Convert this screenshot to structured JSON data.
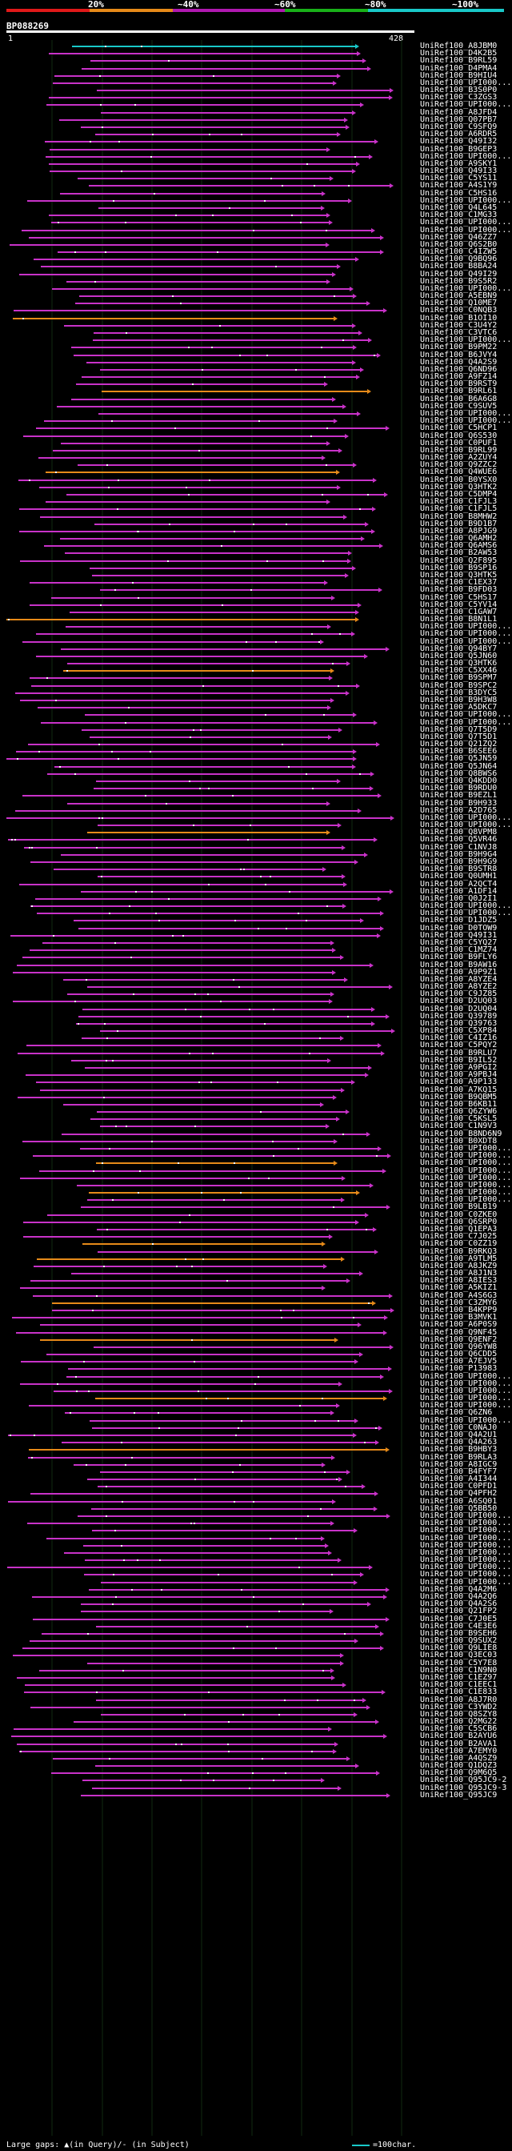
{
  "query": {
    "id": "BP088269",
    "start": "1",
    "end": "428"
  },
  "legend": {
    "ticks": [
      "20%",
      "~40%",
      "~60%",
      "~80%",
      "~100%"
    ],
    "colors": [
      "#e01919",
      "#e68a19",
      "#b019b0",
      "#19b019",
      "#19c8c8"
    ]
  },
  "hit_color": "#c832c8",
  "hit_alt_color": "#e68a19",
  "hit_top_color": "#19c8c8",
  "hits": [
    "UniRef100_A8JBM0",
    "UniRef100_D4K2B5",
    "UniRef100_B9RL59",
    "UniRef100_D4PMA4",
    "UniRef100_B9HIU4",
    "UniRef100_UPI000...",
    "UniRef100_B3S0P0",
    "UniRef100_C3ZGS3",
    "UniRef100_UPI000...",
    "UniRef100_A8JFD4",
    "UniRef100_Q07PB7",
    "UniRef100_C9SFQ9",
    "UniRef100_A6RDR5",
    "UniRef100_Q49I32",
    "UniRef100_B9GEP3",
    "UniRef100_UPI000...",
    "UniRef100_A9SKY1",
    "UniRef100_Q49I33",
    "UniRef100_C5YS11",
    "UniRef100_A4S1Y9",
    "UniRef100_C5HS16",
    "UniRef100_UPI000...",
    "UniRef100_Q4L645",
    "UniRef100_C1MG33",
    "UniRef100_UPI000...",
    "UniRef100_UPI000...",
    "UniRef100_Q46ZZ7",
    "UniRef100_Q6S2B0",
    "UniRef100_C4IZW5",
    "UniRef100_Q9BQ96",
    "UniRef100_B8BA24",
    "UniRef100_Q49I29",
    "UniRef100_B9S5R2",
    "UniRef100_UPI000...",
    "UniRef100_A5EBN9",
    "UniRef100_Q10ME7",
    "UniRef100_C0NQB3",
    "UniRef100_B1OI10",
    "UniRef100_C3U4Y2",
    "UniRef100_C3VTC6",
    "UniRef100_UPI000...",
    "UniRef100_B9PM22",
    "UniRef100_B6JVY4",
    "UniRef100_Q4A2S9",
    "UniRef100_Q6ND96",
    "UniRef100_A9FZ14",
    "UniRef100_B9RST9",
    "UniRef100_B9RL61",
    "UniRef100_B6A6G8",
    "UniRef100_C9SUV5",
    "UniRef100_UPI000...",
    "UniRef100_UPI000...",
    "UniRef100_C5HCP1",
    "UniRef100_Q6S530",
    "UniRef100_C0PUF1",
    "UniRef100_B9RL99",
    "UniRef100_A2ZUY4",
    "UniRef100_Q9ZZC2",
    "UniRef100_Q4WUE6",
    "UniRef100_B0YSX0",
    "UniRef100_Q3HTK2",
    "UniRef100_C5DMP4",
    "UniRef100_C1FJL3",
    "UniRef100_C1FJL5",
    "UniRef100_B8MHW2",
    "UniRef100_B9D1B7",
    "UniRef100_A8PJG9",
    "UniRef100_Q6AMH2",
    "UniRef100_Q6AMS6",
    "UniRef100_B2AW53",
    "UniRef100_Q2F895",
    "UniRef100_B9SP16",
    "UniRef100_Q3HTK5",
    "UniRef100_C1EX37",
    "UniRef100_B9FD03",
    "UniRef100_C5HS17",
    "UniRef100_C5YV14",
    "UniRef100_C1GAW7",
    "UniRef100_B8N1L1",
    "UniRef100_UPI000...",
    "UniRef100_UPI000...",
    "UniRef100_UPI000...",
    "UniRef100_Q94BY7",
    "UniRef100_Q5JN60",
    "UniRef100_Q3HTK6",
    "UniRef100_C5XX46",
    "UniRef100_B9SPM7",
    "UniRef100_B9SPC2",
    "UniRef100_B3DYC5",
    "UniRef100_B9H3W8",
    "UniRef100_A5DKC7",
    "UniRef100_UPI000...",
    "UniRef100_UPI000...",
    "UniRef100_Q7T5D9",
    "UniRef100_Q7T5D1",
    "UniRef100_Q21ZQ2",
    "UniRef100_B6SEE6",
    "UniRef100_Q5JN59",
    "UniRef100_Q5JN64",
    "UniRef100_Q8BWS6",
    "UniRef100_Q4KDD0",
    "UniRef100_B9RDU0",
    "UniRef100_B9EZL1",
    "UniRef100_B9H933",
    "UniRef100_A2D765",
    "UniRef100_UPI000...",
    "UniRef100_UPI000...",
    "UniRef100_Q8VPM8",
    "UniRef100_Q5VR46",
    "UniRef100_C1NVJ8",
    "UniRef100_B9H9G4",
    "UniRef100_B9H9G9",
    "UniRef100_B9STR8",
    "UniRef100_Q0UMH1",
    "UniRef100_A2QCT4",
    "UniRef100_A1DF14",
    "UniRef100_Q0J2I1",
    "UniRef100_UPI000...",
    "UniRef100_UPI000...",
    "UniRef100_D1JDZ5",
    "UniRef100_D0TOW9",
    "UniRef100_Q49I31",
    "UniRef100_C5YQ27",
    "UniRef100_C1MZ74",
    "UniRef100_B9FLY6",
    "UniRef100_B9AW16",
    "UniRef100_A9P9Z1",
    "UniRef100_A8YZE4",
    "UniRef100_A8YZE2",
    "UniRef100_C9JZ85",
    "UniRef100_D2UQ03",
    "UniRef100_D2UQ04",
    "UniRef100_Q39789",
    "UniRef100_Q39763",
    "UniRef100_C5XP84",
    "UniRef100_C4IZ16",
    "UniRef100_C5PQY2",
    "UniRef100_B9RLU7",
    "UniRef100_B9IL52",
    "UniRef100_A9PGI2",
    "UniRef100_A9PBJ4",
    "UniRef100_A9P133",
    "UniRef100_A7KQ15",
    "UniRef100_B9QBM5",
    "UniRef100_B6KB11",
    "UniRef100_Q6ZYW6",
    "UniRef100_C5KSL5",
    "UniRef100_C1N9V3",
    "UniRef100_B8ND6N9",
    "UniRef100_B0XDT8",
    "UniRef100_UPI000...",
    "UniRef100_UPI000...",
    "UniRef100_UPI000...",
    "UniRef100_UPI000...",
    "UniRef100_UPI000...",
    "UniRef100_UPI000...",
    "UniRef100_UPI000...",
    "UniRef100_UPI000...",
    "UniRef100_B9LB19",
    "UniRef100_C0ZKE0",
    "UniRef100_Q6SRP0",
    "UniRef100_Q1EPA3",
    "UniRef100_C7J025",
    "UniRef100_C0ZZ19",
    "UniRef100_B9RKQ3",
    "UniRef100_A9TLM5",
    "UniRef100_A8JKZ9",
    "UniRef100_A8J1N3",
    "UniRef100_A8IES3",
    "UniRef100_A5KIZ1",
    "UniRef100_A4S6G3",
    "UniRef100_C3ZMY6",
    "UniRef100_B4KPP9",
    "UniRef100_B3MVK1",
    "UniRef100_A6P0S9",
    "UniRef100_Q9NF45",
    "UniRef100_Q9ENF2",
    "UniRef100_Q96YW8",
    "UniRef100_Q6CDD5",
    "UniRef100_A7EJV5",
    "UniRef100_P13983",
    "UniRef100_UPI000...",
    "UniRef100_UPI000...",
    "UniRef100_UPI000...",
    "UniRef100_UPI000...",
    "UniRef100_UPI000...",
    "UniRef100_Q6ZN6",
    "UniRef100_UPI000...",
    "UniRef100_C0NAJ0",
    "UniRef100_Q4A2U1",
    "UniRef100_Q4A263",
    "UniRef100_B9HBY3",
    "UniRef100_B9RLA3",
    "UniRef100_A8IGC9",
    "UniRef100_B4FYF7",
    "UniRef100_A4I344",
    "UniRef100_C0PFD1",
    "UniRef100_Q4PFH2",
    "UniRef100_A6SQ01",
    "UniRef100_Q5BB50",
    "UniRef100_UPI000...",
    "UniRef100_UPI000...",
    "UniRef100_UPI000...",
    "UniRef100_UPI000...",
    "UniRef100_UPI000...",
    "UniRef100_UPI000...",
    "UniRef100_UPI000...",
    "UniRef100_UPI000...",
    "UniRef100_UPI000...",
    "UniRef100_UPI000...",
    "UniRef100_Q4A2M6",
    "UniRef100_Q4A2Q6",
    "UniRef100_Q4A2S6",
    "UniRef100_Q21FP2",
    "UniRef100_C7J0E5",
    "UniRef100_C4E3E6",
    "UniRef100_B9SEH6",
    "UniRef100_Q9SUX2",
    "UniRef100_Q9LIE8",
    "UniRef100_Q3EC03",
    "UniRef100_C5Y7E8",
    "UniRef100_C1N9N0",
    "UniRef100_C1EZ97",
    "UniRef100_C1EEC1",
    "UniRef100_C1E833",
    "UniRef100_A8J7R0",
    "UniRef100_C3YWD2",
    "UniRef100_Q8SZY8",
    "UniRef100_Q2MG22",
    "UniRef100_C5SCB6",
    "UniRef100_B2AYU6",
    "UniRef100_B2AVA1",
    "UniRef100_A7EMY0",
    "UniRef100_A4QSZ9",
    "UniRef100_Q1DQZ3",
    "UniRef100_Q9M6Q5",
    "UniRef100_Q95JC9-2",
    "UniRef100_Q95JC9-3",
    "UniRef100_Q95JC9"
  ],
  "footer": {
    "gaps_label": "Large gaps: ▲(in Query)/- (in Subject)",
    "scale_label": "=100char."
  }
}
